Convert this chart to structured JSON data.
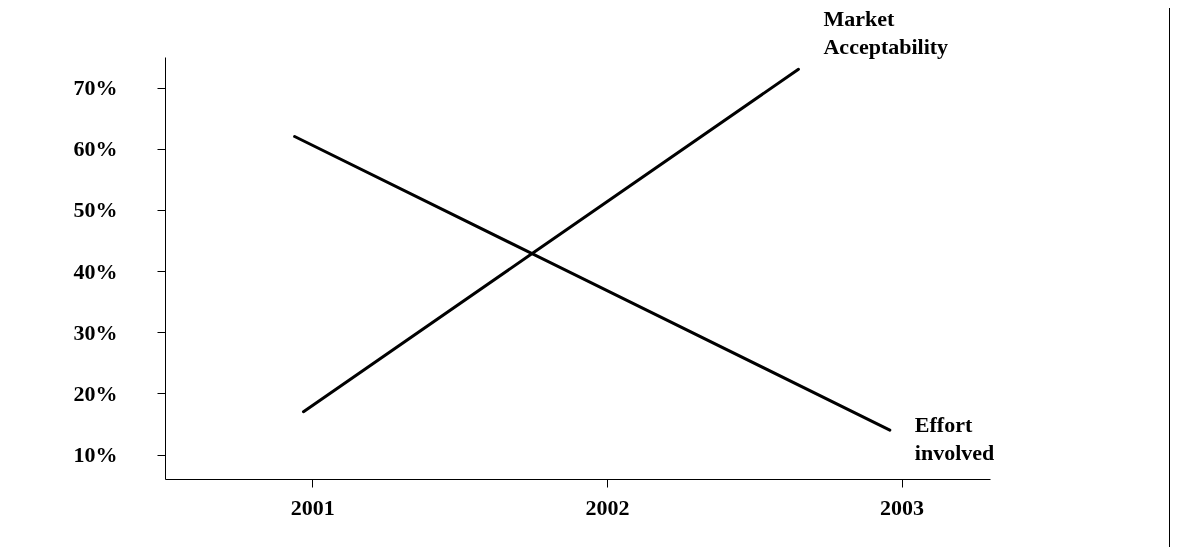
{
  "chart_data": {
    "type": "line",
    "xlim": [
      2000.5,
      2003.3
    ],
    "xticks": [
      2001,
      2002,
      2003
    ],
    "ylim": [
      6,
      75
    ],
    "yticks": [
      {
        "value": 10,
        "label": "10%"
      },
      {
        "value": 20,
        "label": "20%"
      },
      {
        "value": 30,
        "label": "30%"
      },
      {
        "value": 40,
        "label": "40%"
      },
      {
        "value": 50,
        "label": "50%"
      },
      {
        "value": 60,
        "label": "60%"
      },
      {
        "value": 70,
        "label": "70%"
      }
    ],
    "series": [
      {
        "name": "Market Acceptability",
        "color": "#000000",
        "x": [
          2000.97,
          2002.65
        ],
        "values": [
          17,
          73
        ]
      },
      {
        "name": "Effort involved",
        "color": "#000000",
        "x": [
          2000.94,
          2002.96
        ],
        "values": [
          62,
          14
        ]
      }
    ],
    "grid": false,
    "marker": "none",
    "line_style": "solid"
  }
}
